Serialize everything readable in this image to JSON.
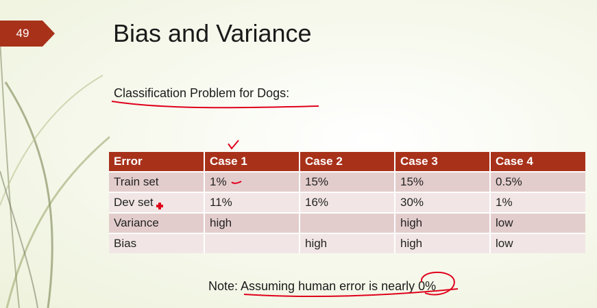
{
  "slide": {
    "number": "49",
    "title": "Bias and Variance",
    "subtitle": "Classification Problem for Dogs:"
  },
  "table": {
    "headers": [
      "Error",
      "Case 1",
      "Case 2",
      "Case 3",
      "Case 4"
    ],
    "rows": [
      [
        "Train set",
        "1%",
        "15%",
        "15%",
        "0.5%"
      ],
      [
        "Dev set",
        "11%",
        "16%",
        "30%",
        "1%"
      ],
      [
        "Variance",
        "high",
        "",
        "high",
        "low"
      ],
      [
        "Bias",
        "",
        "high",
        "high",
        "low"
      ]
    ]
  },
  "note": "Note: Assuming human error is nearly 0%",
  "colors": {
    "accent": "#a8311a",
    "row_odd": "#e3cdcc",
    "row_even": "#f1e6e5",
    "ink": "#e0001b"
  }
}
